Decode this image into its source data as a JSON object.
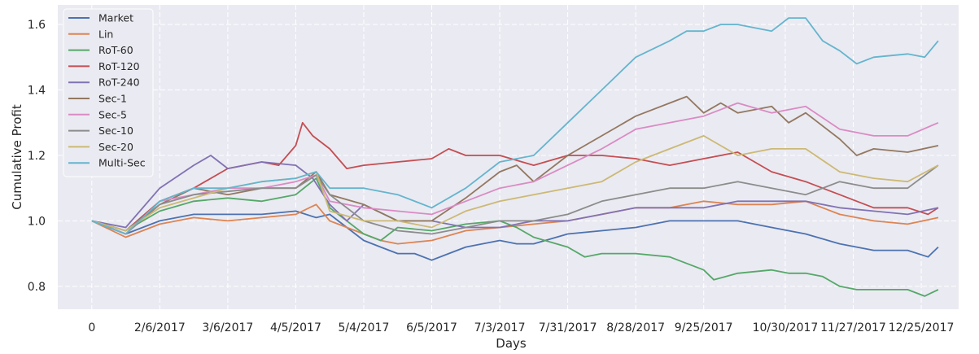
{
  "chart_data": {
    "type": "line",
    "xlabel": "Days",
    "ylabel": "Cumulative Profit",
    "x_ticks": [
      "0",
      "2/6/2017",
      "3/6/2017",
      "4/5/2017",
      "5/4/2017",
      "6/5/2017",
      "7/3/2017",
      "7/31/2017",
      "8/28/2017",
      "9/25/2017",
      "10/30/2017",
      "11/27/2017",
      "12/25/2017"
    ],
    "x_tick_days": [
      0,
      20,
      40,
      60,
      80,
      100,
      120,
      140,
      160,
      180,
      204,
      224,
      244
    ],
    "xlim": [
      -10,
      255
    ],
    "ylim": [
      0.73,
      1.66
    ],
    "y_ticks": [
      0.8,
      1.0,
      1.2,
      1.4,
      1.6
    ],
    "y_tick_labels": [
      "0.8",
      "1.0",
      "1.2",
      "1.4",
      "1.6"
    ],
    "grid": true,
    "legend_position": "top-left",
    "series": [
      {
        "name": "Market",
        "color": "#4c72b0",
        "x": [
          0,
          10,
          20,
          30,
          40,
          50,
          60,
          66,
          70,
          80,
          85,
          90,
          95,
          100,
          105,
          110,
          120,
          125,
          130,
          140,
          150,
          160,
          170,
          180,
          190,
          200,
          210,
          220,
          225,
          230,
          240,
          246,
          249
        ],
        "y": [
          1.0,
          0.96,
          1.0,
          1.02,
          1.02,
          1.02,
          1.03,
          1.01,
          1.02,
          0.94,
          0.92,
          0.9,
          0.9,
          0.88,
          0.9,
          0.92,
          0.94,
          0.93,
          0.93,
          0.96,
          0.97,
          0.98,
          1.0,
          1.0,
          1.0,
          0.98,
          0.96,
          0.93,
          0.92,
          0.91,
          0.91,
          0.89,
          0.92
        ]
      },
      {
        "name": "Lin",
        "color": "#dd8452",
        "x": [
          0,
          10,
          20,
          30,
          40,
          50,
          60,
          66,
          70,
          80,
          85,
          90,
          100,
          110,
          120,
          130,
          140,
          150,
          160,
          170,
          180,
          190,
          200,
          210,
          220,
          230,
          240,
          249
        ],
        "y": [
          1.0,
          0.95,
          0.99,
          1.01,
          1.0,
          1.01,
          1.02,
          1.05,
          1.0,
          0.96,
          0.94,
          0.93,
          0.94,
          0.97,
          0.98,
          0.99,
          1.0,
          1.02,
          1.04,
          1.04,
          1.06,
          1.05,
          1.05,
          1.06,
          1.02,
          1.0,
          0.99,
          1.01
        ]
      },
      {
        "name": "RoT-60",
        "color": "#55a868",
        "x": [
          0,
          10,
          20,
          30,
          40,
          50,
          60,
          66,
          70,
          80,
          85,
          90,
          100,
          110,
          120,
          125,
          130,
          140,
          145,
          150,
          160,
          170,
          175,
          180,
          183,
          190,
          200,
          205,
          210,
          215,
          220,
          225,
          230,
          240,
          245,
          249
        ],
        "y": [
          1.0,
          0.97,
          1.03,
          1.06,
          1.07,
          1.06,
          1.08,
          1.13,
          1.04,
          0.96,
          0.94,
          0.98,
          0.97,
          0.99,
          1.0,
          0.98,
          0.95,
          0.92,
          0.89,
          0.9,
          0.9,
          0.89,
          0.87,
          0.85,
          0.82,
          0.84,
          0.85,
          0.84,
          0.84,
          0.83,
          0.8,
          0.79,
          0.79,
          0.79,
          0.77,
          0.79
        ]
      },
      {
        "name": "RoT-120",
        "color": "#c44e52",
        "x": [
          0,
          10,
          20,
          30,
          40,
          50,
          55,
          60,
          62,
          65,
          70,
          75,
          80,
          90,
          100,
          105,
          110,
          120,
          130,
          140,
          150,
          160,
          170,
          180,
          190,
          200,
          210,
          220,
          230,
          240,
          246,
          249
        ],
        "y": [
          1.0,
          0.97,
          1.06,
          1.1,
          1.16,
          1.18,
          1.17,
          1.23,
          1.3,
          1.26,
          1.22,
          1.16,
          1.17,
          1.18,
          1.19,
          1.22,
          1.2,
          1.2,
          1.17,
          1.2,
          1.2,
          1.19,
          1.17,
          1.19,
          1.21,
          1.15,
          1.12,
          1.08,
          1.04,
          1.04,
          1.02,
          1.04
        ]
      },
      {
        "name": "RoT-240",
        "color": "#8172b3",
        "x": [
          0,
          10,
          20,
          30,
          35,
          40,
          50,
          60,
          65,
          70,
          75,
          80,
          90,
          100,
          110,
          120,
          130,
          140,
          150,
          160,
          170,
          180,
          190,
          200,
          210,
          220,
          230,
          240,
          249
        ],
        "y": [
          1.0,
          0.98,
          1.1,
          1.17,
          1.2,
          1.16,
          1.18,
          1.17,
          1.13,
          1.05,
          1.0,
          1.05,
          1.0,
          1.0,
          0.98,
          0.98,
          1.0,
          1.0,
          1.02,
          1.04,
          1.04,
          1.04,
          1.06,
          1.06,
          1.06,
          1.04,
          1.03,
          1.02,
          1.04
        ]
      },
      {
        "name": "Sec-1",
        "color": "#937860",
        "x": [
          0,
          10,
          20,
          30,
          40,
          50,
          60,
          66,
          70,
          80,
          90,
          100,
          110,
          120,
          125,
          130,
          140,
          150,
          160,
          170,
          175,
          180,
          185,
          190,
          200,
          205,
          210,
          220,
          225,
          230,
          240,
          249
        ],
        "y": [
          1.0,
          0.96,
          1.05,
          1.1,
          1.08,
          1.1,
          1.1,
          1.15,
          1.08,
          1.05,
          1.0,
          1.0,
          1.07,
          1.15,
          1.17,
          1.12,
          1.2,
          1.26,
          1.32,
          1.36,
          1.38,
          1.33,
          1.36,
          1.33,
          1.35,
          1.3,
          1.33,
          1.25,
          1.2,
          1.22,
          1.21,
          1.23
        ]
      },
      {
        "name": "Sec-5",
        "color": "#da8bc3",
        "x": [
          0,
          10,
          20,
          30,
          40,
          50,
          60,
          66,
          70,
          80,
          90,
          100,
          110,
          120,
          130,
          140,
          150,
          160,
          170,
          180,
          190,
          200,
          210,
          220,
          230,
          240,
          249
        ],
        "y": [
          1.0,
          0.96,
          1.06,
          1.08,
          1.1,
          1.1,
          1.12,
          1.14,
          1.06,
          1.04,
          1.03,
          1.02,
          1.06,
          1.1,
          1.12,
          1.17,
          1.22,
          1.28,
          1.3,
          1.32,
          1.36,
          1.33,
          1.35,
          1.28,
          1.26,
          1.26,
          1.3
        ]
      },
      {
        "name": "Sec-10",
        "color": "#8c8c8c",
        "x": [
          0,
          10,
          20,
          30,
          40,
          50,
          60,
          66,
          70,
          80,
          90,
          100,
          110,
          120,
          130,
          140,
          150,
          160,
          170,
          180,
          190,
          200,
          210,
          220,
          230,
          240,
          249
        ],
        "y": [
          1.0,
          0.97,
          1.05,
          1.08,
          1.09,
          1.1,
          1.1,
          1.14,
          1.08,
          1.0,
          0.97,
          0.96,
          0.98,
          1.0,
          1.0,
          1.02,
          1.06,
          1.08,
          1.1,
          1.1,
          1.12,
          1.1,
          1.08,
          1.12,
          1.1,
          1.1,
          1.17
        ]
      },
      {
        "name": "Sec-20",
        "color": "#ccb974",
        "x": [
          0,
          10,
          20,
          30,
          40,
          50,
          60,
          66,
          70,
          80,
          90,
          100,
          110,
          120,
          130,
          140,
          150,
          160,
          170,
          180,
          190,
          200,
          210,
          220,
          230,
          240,
          249
        ],
        "y": [
          1.0,
          0.97,
          1.04,
          1.07,
          1.1,
          1.12,
          1.13,
          1.15,
          1.03,
          1.0,
          1.0,
          0.98,
          1.03,
          1.06,
          1.08,
          1.1,
          1.12,
          1.18,
          1.22,
          1.26,
          1.2,
          1.22,
          1.22,
          1.15,
          1.13,
          1.12,
          1.17
        ]
      },
      {
        "name": "Multi-Sec",
        "color": "#64b5cd",
        "x": [
          0,
          10,
          20,
          30,
          40,
          50,
          60,
          66,
          70,
          80,
          90,
          100,
          110,
          120,
          130,
          140,
          150,
          160,
          170,
          175,
          180,
          185,
          190,
          200,
          205,
          210,
          215,
          220,
          225,
          230,
          240,
          245,
          249
        ],
        "y": [
          1.0,
          0.96,
          1.06,
          1.1,
          1.1,
          1.12,
          1.13,
          1.15,
          1.1,
          1.1,
          1.08,
          1.04,
          1.1,
          1.18,
          1.2,
          1.3,
          1.4,
          1.5,
          1.55,
          1.58,
          1.58,
          1.6,
          1.6,
          1.58,
          1.62,
          1.62,
          1.55,
          1.52,
          1.48,
          1.5,
          1.51,
          1.5,
          1.55
        ]
      }
    ]
  }
}
